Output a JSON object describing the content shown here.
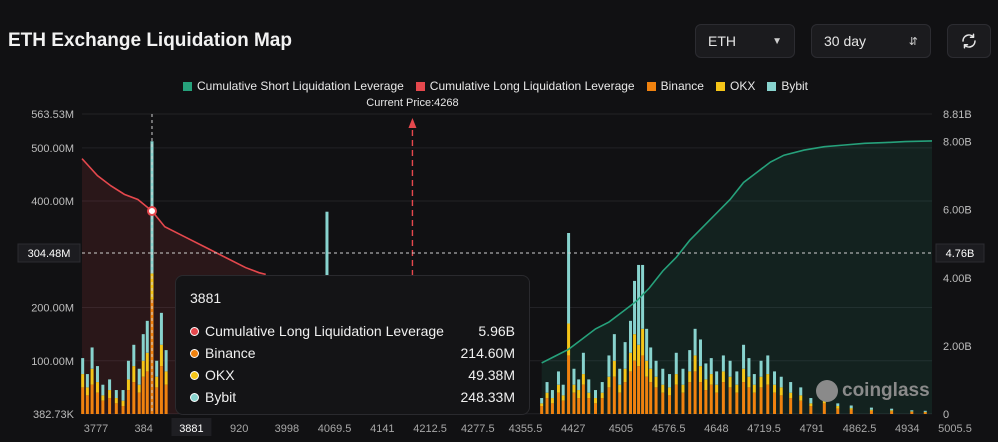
{
  "title": "ETH Exchange Liquidation Map",
  "controls": {
    "coin": "ETH",
    "period": "30 day",
    "refresh_icon": "refresh-icon"
  },
  "legend": [
    {
      "label": "Cumulative Short Liquidation Leverage",
      "color": "#26a17b"
    },
    {
      "label": "Cumulative Long Liquidation Leverage",
      "color": "#e5484d"
    },
    {
      "label": "Binance",
      "color": "#f0820f"
    },
    {
      "label": "OKX",
      "color": "#f5c518"
    },
    {
      "label": "Bybit",
      "color": "#88d3ce"
    }
  ],
  "current_price_label": "Current Price:4268",
  "tooltip": {
    "title": "3881",
    "rows": [
      {
        "label": "Cumulative Long Liquidation Leverage",
        "value": "5.96B",
        "color": "#e5484d"
      },
      {
        "label": "Binance",
        "value": "214.60M",
        "color": "#f0820f"
      },
      {
        "label": "OKX",
        "value": "49.38M",
        "color": "#f5c518"
      },
      {
        "label": "Bybit",
        "value": "248.33M",
        "color": "#88d3ce"
      }
    ]
  },
  "watermark": "coinglass",
  "chart_data": {
    "type": "bar",
    "x_tick_labels": [
      "3777",
      "384",
      "3881",
      "920",
      "3998",
      "4069.5",
      "4141",
      "4212.5",
      "4277.5",
      "4355.5",
      "4427",
      "4505",
      "4576.5",
      "4648",
      "4719.5",
      "4791",
      "4862.5",
      "4934",
      "5005.5"
    ],
    "left_axis": {
      "ticks": [
        "563.53M",
        "500.00M",
        "400.00M",
        "200.00M",
        "100.00M",
        "382.73K"
      ],
      "values": [
        563.53,
        500,
        400,
        200,
        100,
        0.38273
      ],
      "unit": "M",
      "range": [
        0.38273,
        563.53
      ]
    },
    "right_axis": {
      "ticks": [
        "8.81B",
        "8.00B",
        "6.00B",
        "4.00B",
        "2.00B",
        "0"
      ],
      "values": [
        8.81,
        8,
        6,
        4,
        2,
        0
      ],
      "unit": "B",
      "range": [
        0,
        8.81
      ]
    },
    "crosshair": {
      "left_value_label": "304.48M",
      "right_value_label": "4.76B"
    },
    "current_price": 4268,
    "hover_price": "3881",
    "x_range": [
      3777,
      5040
    ],
    "cumulative_long": {
      "x": [
        3777,
        3800,
        3820,
        3840,
        3860,
        3881,
        3900,
        3930,
        3960,
        3990,
        4020,
        4040,
        4050
      ],
      "y": [
        7.5,
        7.0,
        6.7,
        6.45,
        6.3,
        5.96,
        5.5,
        5.2,
        4.9,
        4.6,
        4.3,
        4.15,
        4.1
      ]
    },
    "cumulative_short": {
      "x": [
        4460,
        4480,
        4500,
        4520,
        4540,
        4560,
        4580,
        4600,
        4620,
        4640,
        4660,
        4680,
        4700,
        4720,
        4740,
        4760,
        4780,
        4800,
        4820,
        4850,
        4880,
        4910,
        4940,
        4970,
        5000,
        5040
      ],
      "y": [
        1.5,
        1.7,
        1.9,
        2.2,
        2.5,
        2.7,
        3.0,
        3.3,
        3.7,
        4.2,
        4.6,
        5.1,
        5.5,
        5.9,
        6.3,
        6.8,
        7.1,
        7.4,
        7.6,
        7.75,
        7.85,
        7.9,
        7.95,
        7.97,
        8.0,
        8.02
      ]
    },
    "bars": [
      {
        "x": 3778,
        "binance": 50,
        "okx": 25,
        "bybit": 30
      },
      {
        "x": 3785,
        "binance": 35,
        "okx": 15,
        "bybit": 25
      },
      {
        "x": 3792,
        "binance": 55,
        "okx": 30,
        "bybit": 40
      },
      {
        "x": 3800,
        "binance": 40,
        "okx": 20,
        "bybit": 30
      },
      {
        "x": 3808,
        "binance": 25,
        "okx": 10,
        "bybit": 20
      },
      {
        "x": 3818,
        "binance": 30,
        "okx": 15,
        "bybit": 20
      },
      {
        "x": 3828,
        "binance": 20,
        "okx": 10,
        "bybit": 15
      },
      {
        "x": 3838,
        "binance": 15,
        "okx": 10,
        "bybit": 20
      },
      {
        "x": 3846,
        "binance": 45,
        "okx": 20,
        "bybit": 35
      },
      {
        "x": 3854,
        "binance": 60,
        "okx": 30,
        "bybit": 40
      },
      {
        "x": 3862,
        "binance": 40,
        "okx": 15,
        "bybit": 30
      },
      {
        "x": 3868,
        "binance": 70,
        "okx": 30,
        "bybit": 50
      },
      {
        "x": 3874,
        "binance": 80,
        "okx": 35,
        "bybit": 60
      },
      {
        "x": 3881,
        "binance": 214.6,
        "okx": 49.38,
        "bybit": 248.33
      },
      {
        "x": 3888,
        "binance": 50,
        "okx": 20,
        "bybit": 30
      },
      {
        "x": 3895,
        "binance": 90,
        "okx": 40,
        "bybit": 60
      },
      {
        "x": 3902,
        "binance": 55,
        "okx": 25,
        "bybit": 40
      },
      {
        "x": 4141,
        "binance": 120,
        "okx": 60,
        "bybit": 200
      },
      {
        "x": 4460,
        "binance": 15,
        "okx": 5,
        "bybit": 10
      },
      {
        "x": 4468,
        "binance": 30,
        "okx": 10,
        "bybit": 20
      },
      {
        "x": 4476,
        "binance": 20,
        "okx": 10,
        "bybit": 15
      },
      {
        "x": 4485,
        "binance": 40,
        "okx": 15,
        "bybit": 25
      },
      {
        "x": 4492,
        "binance": 25,
        "okx": 10,
        "bybit": 20
      },
      {
        "x": 4500,
        "binance": 110,
        "okx": 60,
        "bybit": 170
      },
      {
        "x": 4508,
        "binance": 40,
        "okx": 15,
        "bybit": 30
      },
      {
        "x": 4515,
        "binance": 30,
        "okx": 15,
        "bybit": 20
      },
      {
        "x": 4522,
        "binance": 55,
        "okx": 20,
        "bybit": 40
      },
      {
        "x": 4530,
        "binance": 30,
        "okx": 10,
        "bybit": 25
      },
      {
        "x": 4540,
        "binance": 20,
        "okx": 10,
        "bybit": 15
      },
      {
        "x": 4550,
        "binance": 30,
        "okx": 10,
        "bybit": 20
      },
      {
        "x": 4560,
        "binance": 50,
        "okx": 20,
        "bybit": 40
      },
      {
        "x": 4568,
        "binance": 70,
        "okx": 30,
        "bybit": 50
      },
      {
        "x": 4576,
        "binance": 40,
        "okx": 15,
        "bybit": 30
      },
      {
        "x": 4584,
        "binance": 60,
        "okx": 25,
        "bybit": 50
      },
      {
        "x": 4592,
        "binance": 80,
        "okx": 35,
        "bybit": 60
      },
      {
        "x": 4598,
        "binance": 100,
        "okx": 50,
        "bybit": 100
      },
      {
        "x": 4604,
        "binance": 90,
        "okx": 40,
        "bybit": 150
      },
      {
        "x": 4610,
        "binance": 110,
        "okx": 50,
        "bybit": 120
      },
      {
        "x": 4616,
        "binance": 70,
        "okx": 30,
        "bybit": 60
      },
      {
        "x": 4622,
        "binance": 60,
        "okx": 25,
        "bybit": 40
      },
      {
        "x": 4630,
        "binance": 50,
        "okx": 20,
        "bybit": 30
      },
      {
        "x": 4640,
        "binance": 40,
        "okx": 15,
        "bybit": 30
      },
      {
        "x": 4650,
        "binance": 35,
        "okx": 15,
        "bybit": 25
      },
      {
        "x": 4660,
        "binance": 55,
        "okx": 20,
        "bybit": 40
      },
      {
        "x": 4670,
        "binance": 40,
        "okx": 15,
        "bybit": 30
      },
      {
        "x": 4680,
        "binance": 60,
        "okx": 20,
        "bybit": 40
      },
      {
        "x": 4688,
        "binance": 80,
        "okx": 30,
        "bybit": 50
      },
      {
        "x": 4696,
        "binance": 60,
        "okx": 30,
        "bybit": 50
      },
      {
        "x": 4704,
        "binance": 45,
        "okx": 20,
        "bybit": 30
      },
      {
        "x": 4712,
        "binance": 55,
        "okx": 20,
        "bybit": 30
      },
      {
        "x": 4720,
        "binance": 40,
        "okx": 15,
        "bybit": 25
      },
      {
        "x": 4730,
        "binance": 60,
        "okx": 20,
        "bybit": 30
      },
      {
        "x": 4740,
        "binance": 50,
        "okx": 20,
        "bybit": 30
      },
      {
        "x": 4750,
        "binance": 40,
        "okx": 15,
        "bybit": 25
      },
      {
        "x": 4760,
        "binance": 60,
        "okx": 25,
        "bybit": 45
      },
      {
        "x": 4768,
        "binance": 50,
        "okx": 20,
        "bybit": 35
      },
      {
        "x": 4776,
        "binance": 40,
        "okx": 15,
        "bybit": 20
      },
      {
        "x": 4786,
        "binance": 50,
        "okx": 20,
        "bybit": 30
      },
      {
        "x": 4796,
        "binance": 55,
        "okx": 20,
        "bybit": 35
      },
      {
        "x": 4806,
        "binance": 40,
        "okx": 15,
        "bybit": 25
      },
      {
        "x": 4816,
        "binance": 35,
        "okx": 15,
        "bybit": 20
      },
      {
        "x": 4830,
        "binance": 30,
        "okx": 10,
        "bybit": 20
      },
      {
        "x": 4845,
        "binance": 25,
        "okx": 10,
        "bybit": 15
      },
      {
        "x": 4860,
        "binance": 15,
        "okx": 5,
        "bybit": 10
      },
      {
        "x": 4880,
        "binance": 20,
        "okx": 10,
        "bybit": 10
      },
      {
        "x": 4900,
        "binance": 10,
        "okx": 5,
        "bybit": 5
      },
      {
        "x": 4920,
        "binance": 8,
        "okx": 3,
        "bybit": 5
      },
      {
        "x": 4950,
        "binance": 6,
        "okx": 2,
        "bybit": 4
      },
      {
        "x": 4980,
        "binance": 5,
        "okx": 2,
        "bybit": 3
      },
      {
        "x": 5010,
        "binance": 4,
        "okx": 1,
        "bybit": 2
      },
      {
        "x": 5030,
        "binance": 3,
        "okx": 1,
        "bybit": 2
      }
    ],
    "grid": true
  }
}
